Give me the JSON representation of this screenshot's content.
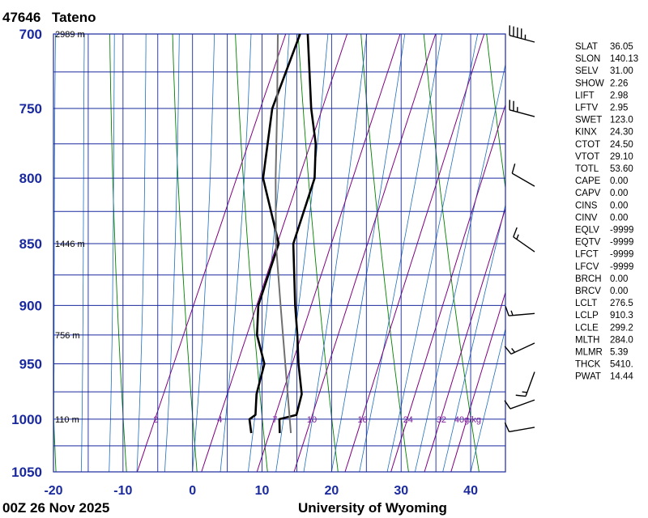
{
  "header": {
    "station_id": "47646",
    "station_name": "Tateno"
  },
  "footer": {
    "time": "00Z 26 Nov 2025",
    "source": "University of Wyoming"
  },
  "colors": {
    "axis": "#1a2a9e",
    "temperature": "#000000",
    "dry_adiabat": "#008000",
    "moist_adiabat": "#1f6fbf",
    "mixing_ratio": "#800080",
    "parcel": "#707070"
  },
  "chart_data": {
    "type": "line",
    "title": "47646  Tateno",
    "xlabel": "",
    "ylabel": "",
    "pressure_ticks": [
      700,
      750,
      800,
      850,
      900,
      950,
      1000,
      1050
    ],
    "temperature_ticks": [
      -20,
      -10,
      0,
      10,
      20,
      30,
      40
    ],
    "xlim": [
      -20,
      45
    ],
    "ylim": [
      1050,
      700
    ],
    "grid": true,
    "y_scale": "log",
    "height_labels": [
      {
        "p": 700,
        "text": "2989 m"
      },
      {
        "p": 850,
        "text": "1446 m"
      },
      {
        "p": 925,
        "text": "756 m"
      },
      {
        "p": 1000,
        "text": "110 m"
      }
    ],
    "mixing_ratio_labels": [
      "2",
      "4",
      "7",
      "10",
      "16",
      "24",
      "32",
      "40g/kg"
    ],
    "mixing_ratio_values": [
      2,
      4,
      7,
      10,
      16,
      24,
      32,
      40
    ],
    "series": [
      {
        "name": "",
        "role": "temperature",
        "p": [
          1013,
          1000,
          996,
          977,
          950,
          925,
          900,
          850,
          800,
          775,
          750,
          700
        ],
        "t": [
          10.2,
          9.3,
          11.5,
          11.0,
          8.7,
          6.8,
          4.7,
          0.7,
          -0.2,
          -2.1,
          -4.9,
          -9.9
        ]
      },
      {
        "name": "",
        "role": "dewpoint",
        "p": [
          1013,
          1000,
          996,
          977,
          950,
          925,
          900,
          850,
          800,
          750,
          700
        ],
        "t": [
          6.1,
          5.0,
          5.6,
          4.5,
          3.8,
          1.0,
          -0.6,
          -1.4,
          -7.6,
          -10.5,
          -11.0
        ]
      },
      {
        "name": "",
        "role": "parcel",
        "p": [
          1013,
          950,
          900,
          850,
          800,
          750,
          700
        ],
        "t": [
          11.8,
          6.8,
          2.6,
          -1.8,
          -5.8,
          -9.8,
          -14.2
        ]
      }
    ]
  },
  "indices": [
    {
      "k": "SLAT",
      "v": "36.05"
    },
    {
      "k": "SLON",
      "v": "140.13"
    },
    {
      "k": "SELV",
      "v": "31.00"
    },
    {
      "k": "SHOW",
      "v": "2.26"
    },
    {
      "k": "LIFT",
      "v": "2.98"
    },
    {
      "k": "LFTV",
      "v": "2.95"
    },
    {
      "k": "SWET",
      "v": "123.0"
    },
    {
      "k": "KINX",
      "v": "24.30"
    },
    {
      "k": "CTOT",
      "v": "24.50"
    },
    {
      "k": "VTOT",
      "v": "29.10"
    },
    {
      "k": "TOTL",
      "v": "53.60"
    },
    {
      "k": "CAPE",
      "v": "0.00"
    },
    {
      "k": "CAPV",
      "v": "0.00"
    },
    {
      "k": "CINS",
      "v": "0.00"
    },
    {
      "k": "CINV",
      "v": "0.00"
    },
    {
      "k": "EQLV",
      "v": "-9999"
    },
    {
      "k": "EQTV",
      "v": "-9999"
    },
    {
      "k": "LFCT",
      "v": "-9999"
    },
    {
      "k": "LFCV",
      "v": "-9999"
    },
    {
      "k": "BRCH",
      "v": "0.00"
    },
    {
      "k": "BRCV",
      "v": "0.00"
    },
    {
      "k": "LCLT",
      "v": "276.5"
    },
    {
      "k": "LCLP",
      "v": "910.3"
    },
    {
      "k": "LCLE",
      "v": "299.2"
    },
    {
      "k": "MLTH",
      "v": "284.0"
    },
    {
      "k": "MLMR",
      "v": "5.39"
    },
    {
      "k": "THCK",
      "v": "5410."
    },
    {
      "k": "PWAT",
      "v": "14.44"
    }
  ],
  "wind_barbs": [
    {
      "p": 700,
      "dir": 285,
      "spd": 45
    },
    {
      "p": 750,
      "dir": 285,
      "spd": 25
    },
    {
      "p": 800,
      "dir": 300,
      "spd": 10
    },
    {
      "p": 850,
      "dir": 305,
      "spd": 15
    },
    {
      "p": 900,
      "dir": 265,
      "spd": 15
    },
    {
      "p": 925,
      "dir": 245,
      "spd": 15
    },
    {
      "p": 950,
      "dir": 200,
      "spd": 15
    },
    {
      "p": 975,
      "dir": 250,
      "spd": 10
    },
    {
      "p": 1000,
      "dir": 260,
      "spd": 10
    }
  ]
}
